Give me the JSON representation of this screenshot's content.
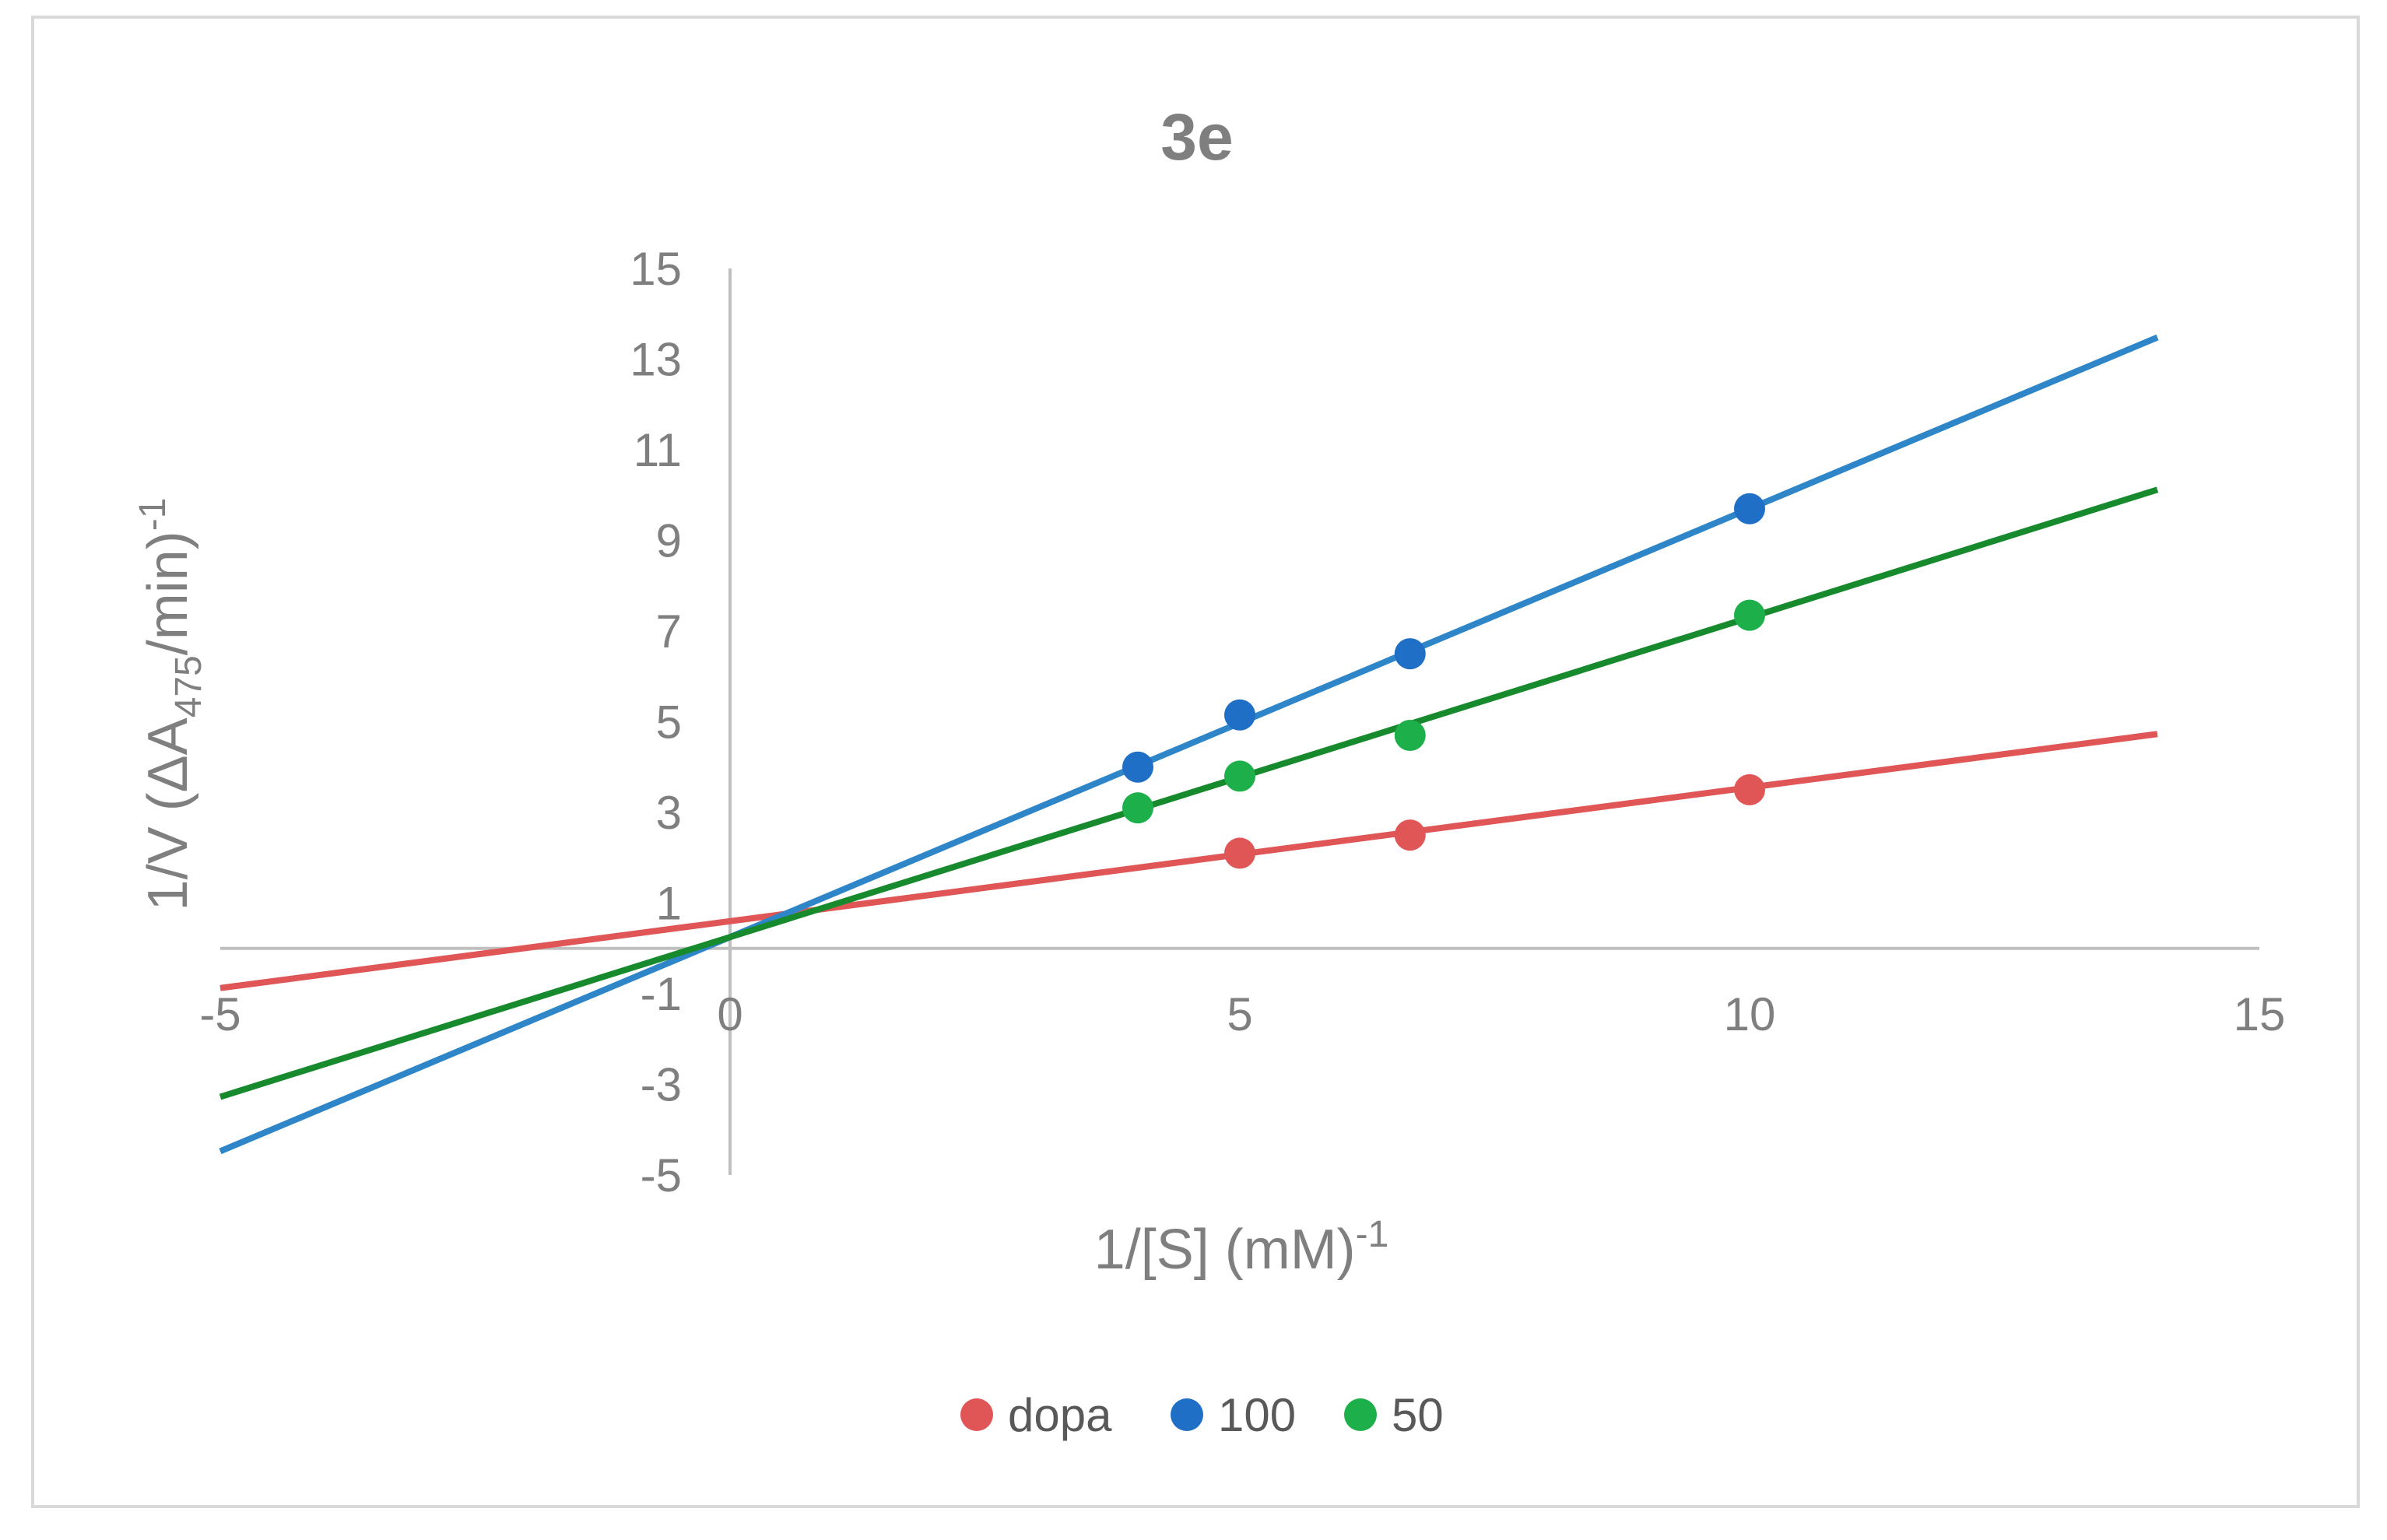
{
  "chart_data": {
    "type": "scatter",
    "title": "3e",
    "xlabel": {
      "main": "1/[S]  (mM)",
      "sup": "-1"
    },
    "ylabel": {
      "prefix": "1/V (ΔA",
      "sub": "475",
      "middle": "/min)",
      "sup": "-1"
    },
    "xlim": [
      -5,
      15
    ],
    "ylim": [
      -5,
      15
    ],
    "xticks": [
      -5,
      0,
      5,
      10,
      15
    ],
    "yticks": [
      -5,
      -3,
      -1,
      1,
      3,
      5,
      7,
      9,
      11,
      13,
      15
    ],
    "trendline_range": [
      -5,
      14
    ],
    "grid": false,
    "legend_position": "bottom",
    "series": [
      {
        "name": "dopa",
        "color": "#e05656",
        "line_color": "#e05656",
        "x": [
          5,
          6.67,
          10
        ],
        "y": [
          2.1,
          2.5,
          3.5
        ],
        "slope": 0.295,
        "intercept": 0.6
      },
      {
        "name": "100",
        "color": "#1f6fc6",
        "line_color": "#2e86c8",
        "x": [
          4,
          5,
          6.67,
          10
        ],
        "y": [
          4.0,
          5.15,
          6.5,
          9.7
        ],
        "slope": 0.945,
        "intercept": 0.25
      },
      {
        "name": "50",
        "color": "#1db04a",
        "line_color": "#178a2e",
        "x": [
          4,
          5,
          6.67,
          10
        ],
        "y": [
          3.1,
          3.8,
          4.7,
          7.35
        ],
        "slope": 0.705,
        "intercept": 0.25
      }
    ]
  }
}
